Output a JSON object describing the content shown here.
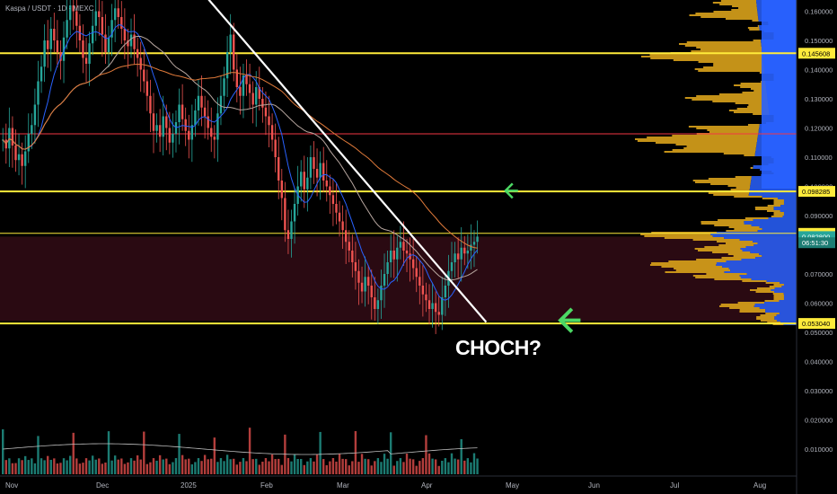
{
  "header": {
    "title": "Kaspa / USDT · 1D · MEXC"
  },
  "annotation": {
    "text": "CHOCH?"
  },
  "colors": {
    "background": "#000000",
    "up": "#26a69a",
    "down": "#ef5350",
    "support": "#ffeb3b",
    "resistance_red": "#f23645",
    "trendline": "#ffffff",
    "arrow": "#4cd964",
    "volume_profile_gold": "#d9a21b",
    "volume_profile_blue": "#2962ff",
    "zone": "#2a0a12"
  },
  "price_badges": [
    {
      "label": "0.145608",
      "value": 0.145608,
      "style": "yellow"
    },
    {
      "label": "0.098285",
      "value": 0.098285,
      "style": "yellow"
    },
    {
      "label": "0.083905",
      "value": 0.083905,
      "style": "yellow"
    },
    {
      "label": "0.082800",
      "value": 0.0828,
      "style": "teal"
    },
    {
      "label": "06:51:30",
      "value": 0.0807,
      "style": "teal-dark"
    },
    {
      "label": "0.053040",
      "value": 0.05304,
      "style": "yellow"
    }
  ],
  "chart_data": {
    "type": "candlestick",
    "title": "Kaspa / USDT · 1D · MEXC",
    "y_axis_ticks": [
      "0.160000",
      "0.150000",
      "0.140000",
      "0.130000",
      "0.120000",
      "0.110000",
      "0.100000",
      "0.090000",
      "0.080000",
      "0.070000",
      "0.060000",
      "0.050000",
      "0.040000",
      "0.030000",
      "0.020000",
      "0.010000"
    ],
    "x_axis_ticks": [
      "Nov",
      "Dec",
      "2025",
      "Feb",
      "Mar",
      "Apr",
      "May",
      "Jun",
      "Jul",
      "Aug"
    ],
    "x_range": [
      "2024-10-30",
      "2025-08-29"
    ],
    "price_range": [
      0.048,
      0.165
    ],
    "volume_scale": "price axis reused for volume (approx. 0.010 – 0.045 display units)",
    "horizontal_levels": [
      {
        "price": 0.145608,
        "color": "support"
      },
      {
        "price": 0.118,
        "color": "resistance_red"
      },
      {
        "price": 0.098285,
        "color": "support"
      },
      {
        "price": 0.083905,
        "color": "support"
      },
      {
        "price": 0.05304,
        "color": "support"
      }
    ],
    "zone": {
      "from": 0.0539,
      "to": 0.0828
    },
    "trendline": {
      "from": {
        "date": "2025-01-10",
        "price": 0.164
      },
      "to": {
        "date": "2025-04-21",
        "price": 0.0535
      }
    },
    "arrows": [
      {
        "date": "2025-04-28",
        "price": 0.0985,
        "size": "small"
      },
      {
        "date": "2025-05-18",
        "price": 0.0541,
        "size": "large"
      }
    ],
    "closes": [
      0.116,
      0.113,
      0.12,
      0.114,
      0.109,
      0.111,
      0.107,
      0.112,
      0.118,
      0.121,
      0.128,
      0.136,
      0.141,
      0.15,
      0.147,
      0.154,
      0.15,
      0.146,
      0.143,
      0.151,
      0.157,
      0.162,
      0.16,
      0.155,
      0.15,
      0.144,
      0.142,
      0.149,
      0.155,
      0.16,
      0.158,
      0.152,
      0.146,
      0.151,
      0.157,
      0.161,
      0.158,
      0.154,
      0.15,
      0.148,
      0.152,
      0.147,
      0.144,
      0.14,
      0.136,
      0.131,
      0.125,
      0.119,
      0.121,
      0.117,
      0.124,
      0.12,
      0.115,
      0.118,
      0.122,
      0.128,
      0.123,
      0.119,
      0.116,
      0.121,
      0.126,
      0.131,
      0.127,
      0.124,
      0.12,
      0.117,
      0.116,
      0.125,
      0.131,
      0.137,
      0.146,
      0.152,
      0.14,
      0.134,
      0.131,
      0.138,
      0.135,
      0.132,
      0.128,
      0.134,
      0.13,
      0.127,
      0.124,
      0.121,
      0.116,
      0.11,
      0.102,
      0.096,
      0.085,
      0.082,
      0.088,
      0.094,
      0.1,
      0.105,
      0.099,
      0.103,
      0.11,
      0.106,
      0.103,
      0.108,
      0.102,
      0.1,
      0.097,
      0.094,
      0.091,
      0.088,
      0.085,
      0.081,
      0.078,
      0.074,
      0.071,
      0.067,
      0.064,
      0.069,
      0.066,
      0.062,
      0.058,
      0.061,
      0.066,
      0.07,
      0.074,
      0.078,
      0.075,
      0.079,
      0.081,
      0.078,
      0.077,
      0.075,
      0.072,
      0.069,
      0.066,
      0.063,
      0.061,
      0.058,
      0.06,
      0.057,
      0.056,
      0.062,
      0.066,
      0.071,
      0.074,
      0.077,
      0.075,
      0.079,
      0.077,
      0.078,
      0.08,
      0.081,
      0.0828
    ]
  }
}
